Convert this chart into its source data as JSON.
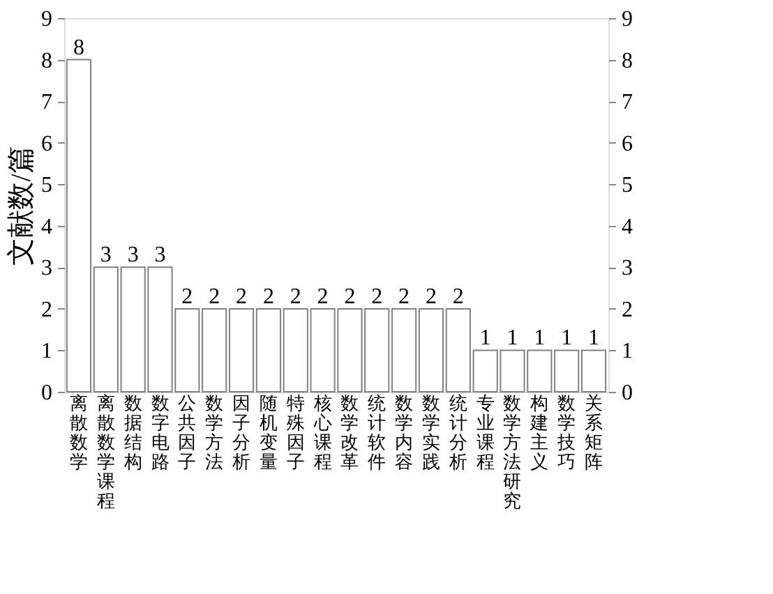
{
  "chart_data": {
    "type": "bar",
    "ylabel": "文献数/篇",
    "categories": [
      "离散数学",
      "离散数学课程",
      "数据结构",
      "数字电路",
      "公共因子",
      "数学方法",
      "因子分析",
      "随机变量",
      "特殊因子",
      "核心课程",
      "数学改革",
      "统计软件",
      "数学内容",
      "数学实践",
      "统计分析",
      "专业课程",
      "数学方法研究",
      "构建主义",
      "数学技巧",
      "关系矩阵"
    ],
    "values": [
      8,
      3,
      3,
      3,
      2,
      2,
      2,
      2,
      2,
      2,
      2,
      2,
      2,
      2,
      2,
      1,
      1,
      1,
      1,
      1
    ],
    "color": "#ffffff",
    "ylim": [
      0,
      9
    ],
    "yticks": [
      0,
      1,
      2,
      3,
      4,
      5,
      6,
      7,
      8,
      9
    ],
    "y2lim": [
      0,
      9
    ],
    "y2ticks": [
      0,
      1,
      2,
      3,
      4,
      5,
      6,
      7,
      8,
      9
    ],
    "data_labels": true,
    "grid": false
  }
}
